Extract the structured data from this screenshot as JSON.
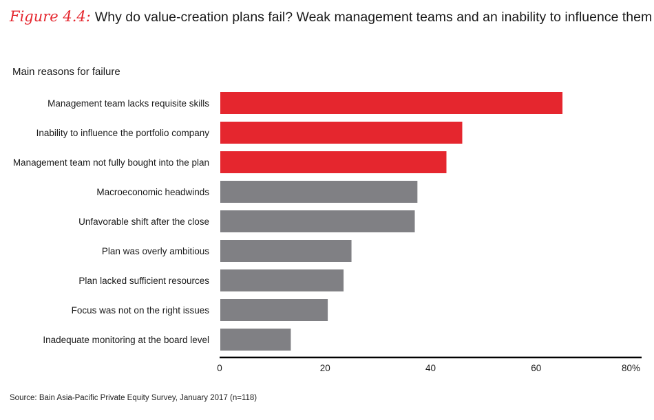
{
  "figure": {
    "label": "Figure 4.4:",
    "title": "Why do value-creation plans fail? Weak management teams and an inability to influence them"
  },
  "chart_data": {
    "type": "bar",
    "orientation": "horizontal",
    "title": "Why do value-creation plans fail? Weak management teams and an inability to influence them",
    "subtitle": "Main reasons for failure",
    "categories": [
      "Management team lacks requisite skills",
      "Inability to influence the portfolio company",
      "Management team not fully bought into the plan",
      "Macroeconomic headwinds",
      "Unfavorable shift after the close",
      "Plan was overly ambitious",
      "Plan lacked sufficient resources",
      "Focus was not on the right issues",
      "Inadequate monitoring at the board level"
    ],
    "values": [
      65,
      46,
      43,
      37.5,
      37,
      25,
      23.5,
      20.5,
      13.5
    ],
    "highlight": [
      true,
      true,
      true,
      false,
      false,
      false,
      false,
      false,
      false
    ],
    "xlim": [
      0,
      80
    ],
    "xticks": [
      "0",
      "20",
      "40",
      "60",
      "80%"
    ],
    "colors": {
      "highlight": "#e5262e",
      "default": "#808084",
      "axis": "#000000"
    }
  },
  "source": "Source: Bain Asia-Pacific Private Equity Survey, January 2017 (n=118)"
}
